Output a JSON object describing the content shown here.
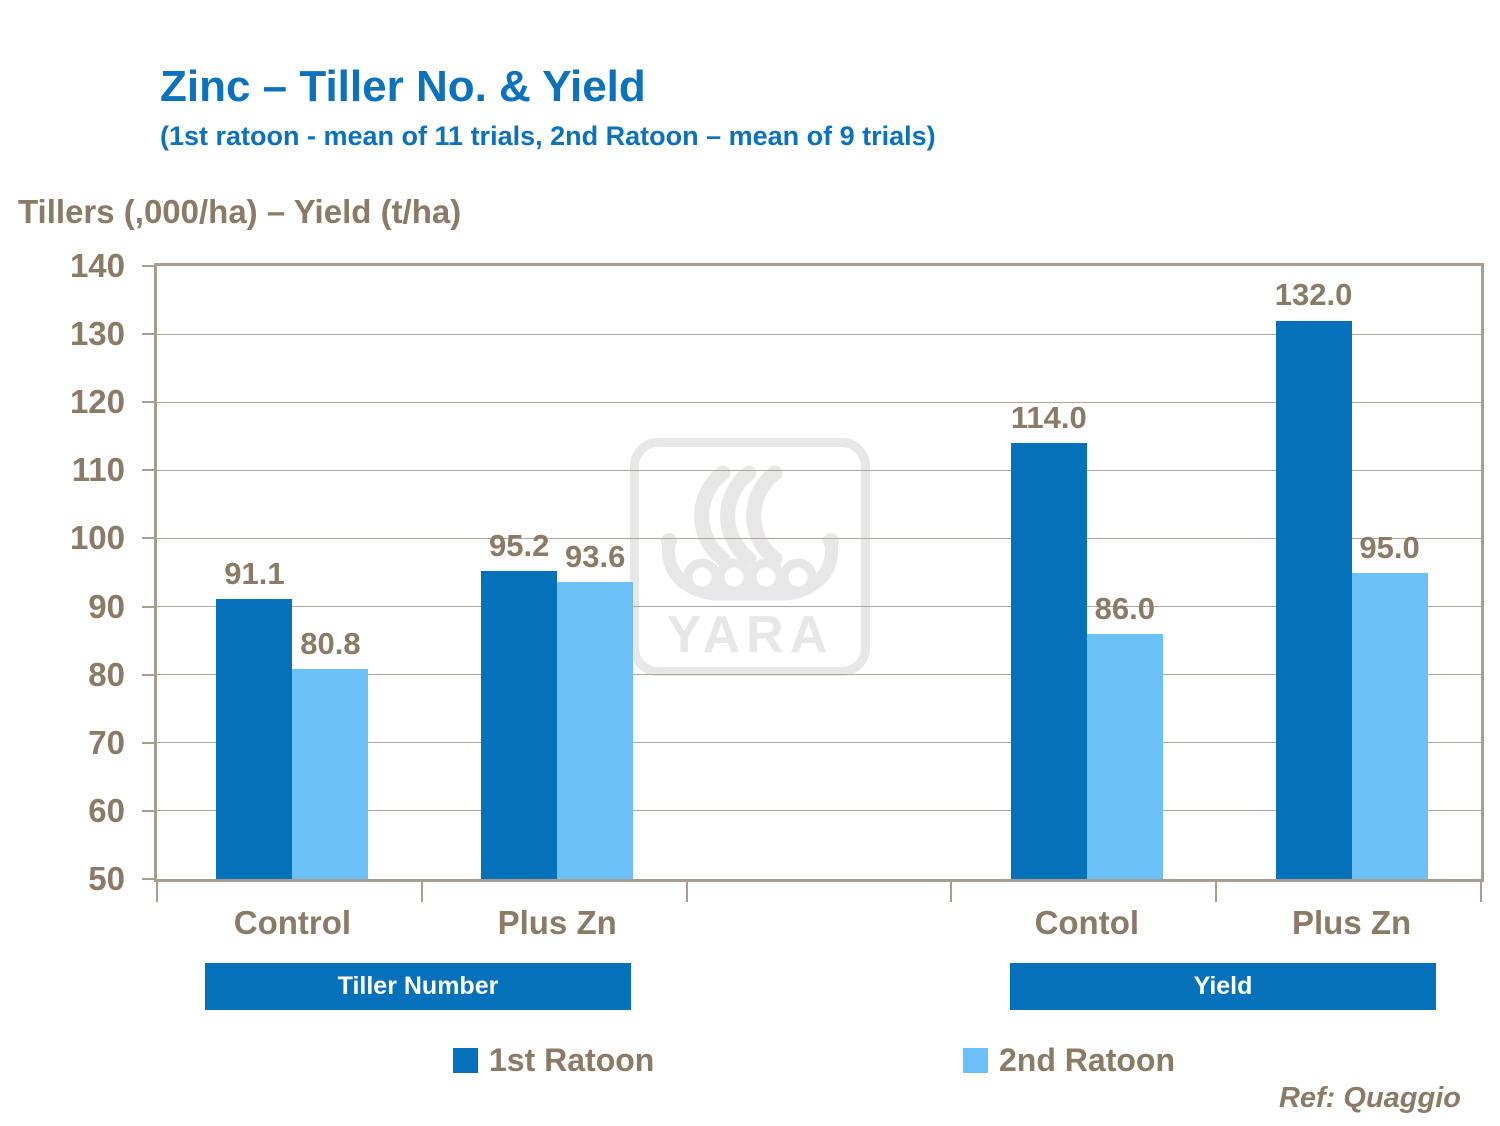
{
  "slide": {
    "title": "Zinc – Tiller No. & Yield",
    "subtitle": "(1st ratoon - mean of 11 trials, 2nd Ratoon – mean of 9 trials)",
    "axis_title": "Tillers (,000/ha) – Yield (t/ha)",
    "reference": "Ref: Quaggio",
    "watermark_text": "YARA"
  },
  "colors": {
    "title_blue": "#0D72BC",
    "series1_blue": "#0571BA",
    "series2_blue": "#6CC0F8",
    "banner_blue": "#0571BA",
    "text_brown": "#8B7A65",
    "grid_tan": "#B2A596",
    "border_tan": "#A89E90",
    "watermark_gray": "#E7E7E7"
  },
  "legend": {
    "items": [
      {
        "label": "1st Ratoon",
        "color": "#0571BA"
      },
      {
        "label": "2nd Ratoon",
        "color": "#6CC0F8"
      }
    ]
  },
  "chart_data": {
    "type": "bar",
    "title": "Zinc – Tiller No. & Yield",
    "subtitle": "(1st ratoon - mean of 11 trials, 2nd Ratoon – mean of 9 trials)",
    "ylabel": "Tillers (,000/ha) – Yield (t/ha)",
    "ylim": [
      50,
      140
    ],
    "yticks": [
      140,
      130,
      120,
      110,
      100,
      90,
      80,
      70,
      60,
      50
    ],
    "grid": true,
    "legend_position": "bottom",
    "categories": [
      "Control",
      "Plus Zn",
      "Contol",
      "Plus Zn"
    ],
    "sections": [
      {
        "label": "Tiller Number",
        "categories": [
          "Control",
          "Plus Zn"
        ]
      },
      {
        "label": "Yield",
        "categories": [
          "Contol",
          "Plus Zn"
        ]
      }
    ],
    "series": [
      {
        "name": "1st Ratoon",
        "values": [
          91.1,
          95.2,
          114.0,
          132.0
        ],
        "labels": [
          "91.1",
          "95.2",
          "114.0",
          "132.0"
        ]
      },
      {
        "name": "2nd Ratoon",
        "values": [
          80.8,
          93.6,
          86.0,
          95.0
        ],
        "labels": [
          "80.8",
          "93.6",
          "86.0",
          "95.0"
        ]
      }
    ],
    "reference": "Ref: Quaggio"
  }
}
